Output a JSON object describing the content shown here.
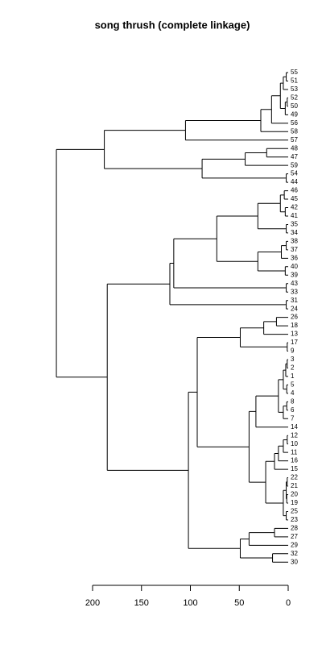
{
  "chart_data": {
    "type": "dendrogram",
    "title": "song thrush (complete linkage)",
    "xlim": [
      0,
      200
    ],
    "xticks": [
      200,
      150,
      100,
      50,
      0
    ],
    "tree": {
      "height": 237,
      "children": [
        {
          "height": 188,
          "children": [
            {
              "height": 105,
              "children": [
                {
                  "height": 28,
                  "children": [
                    {
                      "height": 17,
                      "children": [
                        {
                          "height": 8,
                          "children": [
                            {
                              "height": 5,
                              "children": [
                                {
                                  "height": 2,
                                  "children": [
                                    "55",
                                    "51"
                                  ]
                                },
                                "53"
                              ]
                            },
                            {
                              "height": 3,
                              "children": [
                                {
                                  "height": 1,
                                  "children": [
                                    "52",
                                    "50"
                                  ]
                                },
                                "49"
                              ]
                            }
                          ]
                        },
                        "56"
                      ]
                    },
                    "58"
                  ]
                },
                "57"
              ]
            },
            {
              "height": 88,
              "children": [
                {
                  "height": 44,
                  "children": [
                    {
                      "height": 22,
                      "children": [
                        "48",
                        "47"
                      ]
                    },
                    "59"
                  ]
                },
                {
                  "height": 2,
                  "children": [
                    "54",
                    "44"
                  ]
                }
              ]
            }
          ]
        },
        {
          "height": 185,
          "children": [
            {
              "height": 121,
              "children": [
                {
                  "height": 117,
                  "children": [
                    {
                      "height": 73,
                      "children": [
                        {
                          "height": 31,
                          "children": [
                            {
                              "height": 8,
                              "children": [
                                {
                                  "height": 4,
                                  "children": [
                                    "46",
                                    "45"
                                  ]
                                },
                                {
                                  "height": 3,
                                  "children": [
                                    "42",
                                    "41"
                                  ]
                                }
                              ]
                            },
                            {
                              "height": 2,
                              "children": [
                                "35",
                                "34"
                              ]
                            }
                          ]
                        },
                        {
                          "height": 31,
                          "children": [
                            {
                              "height": 7,
                              "children": [
                                {
                                  "height": 2,
                                  "children": [
                                    "38",
                                    "37"
                                  ]
                                },
                                "36"
                              ]
                            },
                            {
                              "height": 3,
                              "children": [
                                "40",
                                "39"
                              ]
                            }
                          ]
                        }
                      ]
                    },
                    {
                      "height": 2,
                      "children": [
                        "43",
                        "33"
                      ]
                    }
                  ]
                },
                {
                  "height": 2,
                  "children": [
                    "31",
                    "24"
                  ]
                }
              ]
            },
            {
              "height": 102,
              "children": [
                {
                  "height": 93,
                  "children": [
                    {
                      "height": 49,
                      "children": [
                        {
                          "height": 25,
                          "children": [
                            {
                              "height": 12,
                              "children": [
                                "26",
                                "18"
                              ]
                            },
                            "13"
                          ]
                        },
                        {
                          "height": 1,
                          "children": [
                            "17",
                            "9"
                          ]
                        }
                      ]
                    },
                    {
                      "height": 40,
                      "children": [
                        {
                          "height": 33,
                          "children": [
                            {
                              "height": 10,
                              "children": [
                                {
                                  "height": 5,
                                  "children": [
                                    {
                                      "height": 2.5,
                                      "children": [
                                        {
                                          "height": 1,
                                          "children": [
                                            "3",
                                            "2"
                                          ]
                                        },
                                        "1"
                                      ]
                                    },
                                    {
                                      "height": 1.5,
                                      "children": [
                                        "5",
                                        "4"
                                      ]
                                    }
                                  ]
                                },
                                {
                                  "height": 5,
                                  "children": [
                                    {
                                      "height": 1.5,
                                      "children": [
                                        "8",
                                        "6"
                                      ]
                                    },
                                    "7"
                                  ]
                                }
                              ]
                            },
                            "14"
                          ]
                        },
                        {
                          "height": 23,
                          "children": [
                            {
                              "height": 14,
                              "children": [
                                {
                                  "height": 10,
                                  "children": [
                                    {
                                      "height": 5,
                                      "children": [
                                        {
                                          "height": 1,
                                          "children": [
                                            "12",
                                            "10"
                                          ]
                                        },
                                        "11"
                                      ]
                                    },
                                    "16"
                                  ]
                                },
                                "15"
                              ]
                            },
                            {
                              "height": 5,
                              "children": [
                                {
                                  "height": 2,
                                  "children": [
                                    {
                                      "height": 1,
                                      "children": [
                                        "22",
                                        "21"
                                      ]
                                    },
                                    {
                                      "height": 1.5,
                                      "children": [
                                        "20",
                                        "19"
                                      ]
                                    }
                                  ]
                                },
                                {
                                  "height": 2,
                                  "children": [
                                    "25",
                                    "23"
                                  ]
                                }
                              ]
                            }
                          ]
                        }
                      ]
                    }
                  ]
                },
                {
                  "height": 49,
                  "children": [
                    {
                      "height": 40,
                      "children": [
                        {
                          "height": 14,
                          "children": [
                            "28",
                            "27"
                          ]
                        },
                        "29"
                      ]
                    },
                    {
                      "height": 16,
                      "children": [
                        "32",
                        "30"
                      ]
                    }
                  ]
                }
              ]
            }
          ]
        }
      ]
    }
  }
}
